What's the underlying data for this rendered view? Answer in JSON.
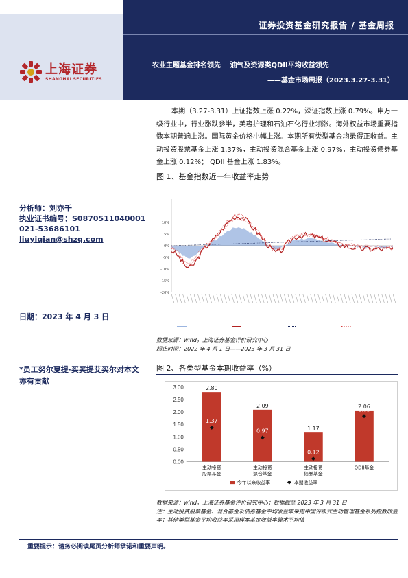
{
  "header": {
    "report_type": "证券投资基金研究报告 / 基金周报",
    "headline": "农业主题基金排名领先　 油气及资源类QDII平均收益领先",
    "subheadline": "——基金市场周报（2023.3.27-3.31）"
  },
  "logo": {
    "cn": "上海证券",
    "en": "SHANGHAI SECURITIES"
  },
  "author": {
    "analyst": "分析师：刘亦千",
    "license": "执业证书编号：S0870511040001",
    "phone": "021-53686101",
    "email": "liuyiqian@shzq.com"
  },
  "date": "日期：2023 年 4 月 3 日",
  "thanks": "*员工努尔夏提·买买提艾买尔对本文亦有贡献",
  "summary": "本期（3.27-3.31）上证指数上涨 0.22%，深证指数上涨 0.79%。申万一级行业中，行业涨跌参半，美容护理和石油石化行业领涨。海外权益市场重要指数本期普遍上涨。国际黄金价格小幅上涨。本期所有类型基金均录得正收益。主动投资股票基金上涨 1.37%，主动投资混合基金上涨 0.97%，主动投资债券基金上涨 0.12%； QDII 基金上涨 1.83%。",
  "figure1": {
    "title": "图 1、基金指数近一年收益率走势",
    "source1": "数据来源：wind，上海证券基金评价研究中心",
    "source2": "起止时间：2022 年 4 月 1 日——2023 年 3 月 31 日"
  },
  "figure2": {
    "title": "图 2、各类型基金本期收益率（%）",
    "source1": "数据来源：wind，上海证券基金评价研究中心；数据截至 2023 年 3 月 31 日",
    "source2": "注：主动投资股票基金、混合基金及债券基金平均收益率采用中国评级式主动管理基金系列指数收益率；其他类型基金平均收益率采用样本基金收益率算术平均值"
  },
  "footer": "重要提示：请务必阅读尾页分析师承诺和重要声明。",
  "colors": {
    "navy": "#1c2a5e",
    "bar_red": "#c0392b",
    "area_blue": "#9bb5e0"
  },
  "chart_data": [
    {
      "type": "line",
      "title": "",
      "ylim": [
        -20,
        20
      ],
      "yticks": [
        "10%",
        "5%",
        "0%",
        "-5%",
        "-10%",
        "-15%",
        "-20%"
      ],
      "grid": false,
      "legend": "bottom"
    },
    {
      "type": "bar",
      "categories": [
        "主动投资\n股票基金",
        "主动投资\n混合基金",
        "主动投资\n债券基金",
        "QDII基金"
      ],
      "ylim": [
        0,
        3
      ],
      "yticks": [
        "3.00",
        "2.50",
        "2.00",
        "1.50",
        "1.00",
        "0.50",
        "0.00"
      ],
      "series": [
        {
          "name": "今年以来收益率",
          "values": [
            2.8,
            2.09,
            1.17,
            2.06
          ],
          "labels": [
            "2.80",
            "2.09",
            "1.17",
            "2.06"
          ]
        },
        {
          "name": "本期收益率",
          "values": [
            1.37,
            0.97,
            0.12,
            1.83
          ],
          "labels": [
            "1.37",
            "0.97",
            "0.12",
            "1.83"
          ]
        }
      ],
      "legend": "bottom"
    }
  ]
}
